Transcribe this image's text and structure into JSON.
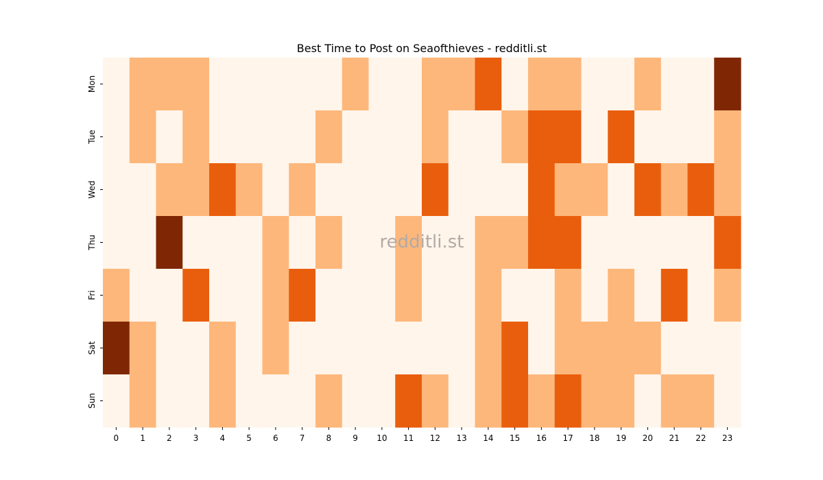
{
  "chart_data": {
    "type": "heatmap",
    "title": "Best Time to Post on Seaofthieves - redditli.st",
    "watermark": "redditli.st",
    "xlabel": "",
    "ylabel": "",
    "x_categories": [
      "0",
      "1",
      "2",
      "3",
      "4",
      "5",
      "6",
      "7",
      "8",
      "9",
      "10",
      "11",
      "12",
      "13",
      "14",
      "15",
      "16",
      "17",
      "18",
      "19",
      "20",
      "21",
      "22",
      "23"
    ],
    "y_categories": [
      "Mon",
      "Tue",
      "Wed",
      "Thu",
      "Fri",
      "Sat",
      "Sun"
    ],
    "levels": [
      0,
      1,
      2,
      3
    ],
    "values": [
      [
        0,
        1,
        1,
        1,
        0,
        0,
        0,
        0,
        0,
        1,
        0,
        0,
        1,
        1,
        2,
        0,
        1,
        1,
        0,
        0,
        1,
        0,
        0,
        3
      ],
      [
        0,
        1,
        0,
        1,
        0,
        0,
        0,
        0,
        1,
        0,
        0,
        0,
        1,
        0,
        0,
        1,
        2,
        2,
        0,
        2,
        0,
        0,
        0,
        1
      ],
      [
        0,
        0,
        1,
        1,
        2,
        1,
        0,
        1,
        0,
        0,
        0,
        0,
        2,
        0,
        0,
        0,
        2,
        1,
        1,
        0,
        2,
        1,
        2,
        1
      ],
      [
        0,
        0,
        3,
        0,
        0,
        0,
        1,
        0,
        1,
        0,
        0,
        1,
        0,
        0,
        1,
        1,
        2,
        2,
        0,
        0,
        0,
        0,
        0,
        2
      ],
      [
        1,
        0,
        0,
        2,
        0,
        0,
        1,
        2,
        0,
        0,
        0,
        1,
        0,
        0,
        1,
        0,
        0,
        1,
        0,
        1,
        0,
        2,
        0,
        1
      ],
      [
        3,
        1,
        0,
        0,
        1,
        0,
        1,
        0,
        0,
        0,
        0,
        0,
        0,
        0,
        1,
        2,
        0,
        1,
        1,
        1,
        1,
        0,
        0,
        0
      ],
      [
        0,
        1,
        0,
        0,
        1,
        0,
        0,
        0,
        1,
        0,
        0,
        2,
        1,
        0,
        1,
        2,
        1,
        2,
        1,
        1,
        0,
        1,
        1,
        0
      ]
    ],
    "colors": [
      "#fff5eb",
      "#fdb77b",
      "#e95e0d",
      "#7f2704"
    ],
    "colorbar": false,
    "grid": false
  }
}
